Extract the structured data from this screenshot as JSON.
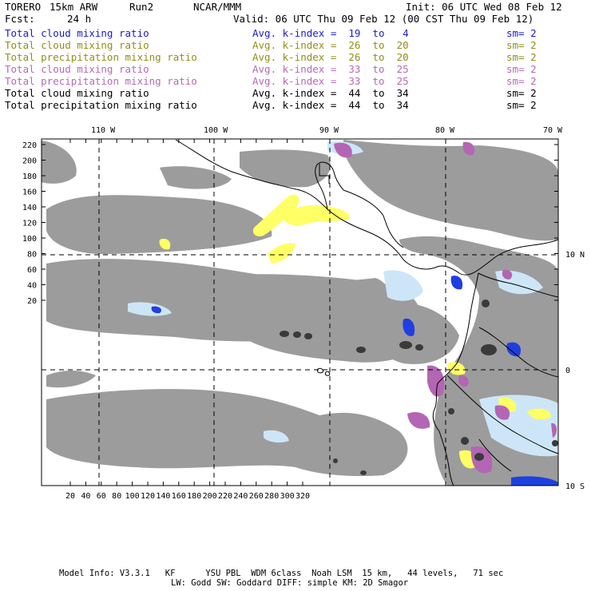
{
  "header": {
    "model": "TORERO",
    "resolution": "15km ARW",
    "run": "Run2",
    "org": "NCAR/MMM",
    "init": "Init: 06 UTC Wed 08 Feb 12",
    "fcst_label": "Fcst:",
    "fcst_value": "24 h",
    "valid": "Valid: 06 UTC Thu 09 Feb 12 (00 CST Thu 09 Feb 12)"
  },
  "legend": [
    {
      "field": "Total cloud mixing ratio",
      "kindex": "Avg. k-index =  19  to   4",
      "sm": "sm= 2",
      "color": "#1a1ad0"
    },
    {
      "field": "Total cloud mixing ratio",
      "kindex": "Avg. k-index =  26  to  20",
      "sm": "sm= 2",
      "color": "#8f8f1a"
    },
    {
      "field": "Total precipitation mixing ratio",
      "kindex": "Avg. k-index =  26  to  20",
      "sm": "sm= 2",
      "color": "#8f8f1a"
    },
    {
      "field": "Total cloud mixing ratio",
      "kindex": "Avg. k-index =  33  to  25",
      "sm": "sm= 2",
      "color": "#b46ab4"
    },
    {
      "field": "Total precipitation mixing ratio",
      "kindex": "Avg. k-index =  33  to  25",
      "sm": "sm= 2",
      "color": "#b46ab4"
    },
    {
      "field": "Total cloud mixing ratio",
      "kindex": "Avg. k-index =  44  to  34",
      "sm": "sm= 2",
      "color": "#000000"
    },
    {
      "field": "Total precipitation mixing ratio",
      "kindex": "Avg. k-index =  44  to  34",
      "sm": "sm= 2",
      "color": "#000000"
    }
  ],
  "map": {
    "lon_labels": [
      "110 W",
      "100 W",
      "90 W",
      "80 W",
      "70 W"
    ],
    "lat_labels": [
      "10 N",
      "0",
      "10 S"
    ],
    "y_ticks": [
      "220",
      "200",
      "180",
      "160",
      "140",
      "120",
      "100",
      "80",
      "60",
      "40",
      "20"
    ],
    "x_ticks": [
      "20",
      "40",
      "60",
      "80",
      "100",
      "120",
      "140",
      "160",
      "180",
      "200",
      "220",
      "240",
      "260",
      "280",
      "300",
      "320"
    ],
    "colors": {
      "cloud_gray": "#9c9c9c",
      "light_blue": "#cde6f7",
      "blue": "#1f3fe0",
      "yellow": "#ffff66",
      "purple": "#b465b4",
      "dark": "#3a3a3a",
      "coast": "#000000"
    }
  },
  "footer": {
    "line1": "Model Info: V3.3.1   KF      YSU PBL  WDM 6class  Noah LSM  15 km,   44 levels,   71 sec",
    "line2": "LW: Godd SW: Goddard DIFF: simple KM: 2D Smagor"
  }
}
